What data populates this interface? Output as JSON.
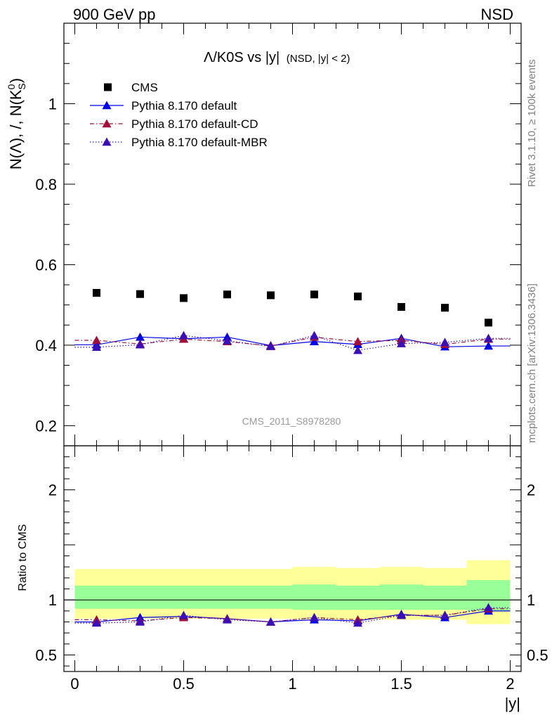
{
  "header": {
    "left_label": "900 GeV pp",
    "right_label": "NSD",
    "title_main": "Λ/K0S vs |y|",
    "title_sub": "(NSD, |y| < 2)"
  },
  "side_labels": {
    "rivet": "Rivet 3.1.10, ≥ 100k events",
    "mcplots": "mcplots.cern.ch [arXiv:1306.3436]"
  },
  "watermark": "CMS_2011_S8978280",
  "chart_data": [
    {
      "type": "scatter",
      "panel": "main",
      "ylabel": "N(Λ), /, N(K0S)",
      "ylabel_parts": {
        "a": "N(Λ), /, N(K",
        "sup": "0",
        "sub": "S",
        "b": ")"
      },
      "xlabel": "|y|",
      "xlim": [
        -0.05,
        2.05
      ],
      "ylim": [
        0.15,
        1.2
      ],
      "yticks": [
        0.2,
        0.4,
        0.6,
        0.8,
        1.0
      ],
      "ytick_labels": [
        "0.2",
        "0.4",
        "0.6",
        "0.8",
        "1"
      ],
      "x": [
        0.1,
        0.3,
        0.5,
        0.7,
        0.9,
        1.1,
        1.3,
        1.5,
        1.7,
        1.9
      ],
      "series": [
        {
          "name": "CMS",
          "style": "data",
          "color": "#000000",
          "values": [
            0.53,
            0.527,
            0.517,
            0.526,
            0.524,
            0.526,
            0.521,
            0.495,
            0.493,
            0.456
          ]
        },
        {
          "name": "Pythia 8.170 default",
          "style": "solid",
          "color": "#0000e6",
          "values": [
            0.401,
            0.42,
            0.416,
            0.42,
            0.399,
            0.409,
            0.402,
            0.417,
            0.396,
            0.398
          ],
          "errors": [
            0.006,
            0.007,
            0.007,
            0.007,
            0.006,
            0.007,
            0.007,
            0.007,
            0.007,
            0.007
          ]
        },
        {
          "name": "Pythia 8.170 default-CD",
          "style": "dashdot",
          "color": "#a0103a",
          "values": [
            0.412,
            0.403,
            0.415,
            0.409,
            0.398,
            0.42,
            0.409,
            0.412,
            0.402,
            0.415
          ],
          "errors": [
            0.006,
            0.007,
            0.007,
            0.007,
            0.006,
            0.007,
            0.007,
            0.007,
            0.007,
            0.007
          ]
        },
        {
          "name": "Pythia 8.170 default-MBR",
          "style": "dotted",
          "color": "#3b0fb5",
          "values": [
            0.395,
            0.401,
            0.424,
            0.411,
            0.397,
            0.424,
            0.387,
            0.404,
            0.407,
            0.417
          ],
          "errors": [
            0.006,
            0.007,
            0.007,
            0.007,
            0.006,
            0.007,
            0.007,
            0.007,
            0.007,
            0.007
          ]
        }
      ]
    },
    {
      "type": "scatter",
      "panel": "ratio",
      "ylabel": "Ratio to CMS",
      "xlabel": "|y|",
      "xlim": [
        -0.05,
        2.05
      ],
      "ylim": [
        0.35,
        2.4
      ],
      "yticks": [
        0.5,
        1,
        2
      ],
      "ytick_labels": [
        "0.5",
        "1",
        "2"
      ],
      "xticks": [
        0,
        0.5,
        1,
        1.5,
        2
      ],
      "xtick_labels": [
        "0",
        "0.5",
        "1",
        "1.5",
        "2"
      ],
      "x": [
        0.1,
        0.3,
        0.5,
        0.7,
        0.9,
        1.1,
        1.3,
        1.5,
        1.7,
        1.9
      ],
      "bands": {
        "x_edges": [
          0.0,
          0.2,
          0.4,
          0.6,
          0.8,
          1.0,
          1.2,
          1.4,
          1.6,
          1.8,
          2.0
        ],
        "stat_sys_yellow": [
          [
            0.83,
            1.28
          ],
          [
            0.83,
            1.28
          ],
          [
            0.83,
            1.28
          ],
          [
            0.83,
            1.28
          ],
          [
            0.83,
            1.28
          ],
          [
            0.82,
            1.3
          ],
          [
            0.82,
            1.29
          ],
          [
            0.82,
            1.3
          ],
          [
            0.82,
            1.29
          ],
          [
            0.78,
            1.36
          ]
        ],
        "stat_green": [
          [
            0.92,
            1.13
          ],
          [
            0.92,
            1.13
          ],
          [
            0.92,
            1.13
          ],
          [
            0.92,
            1.13
          ],
          [
            0.92,
            1.13
          ],
          [
            0.91,
            1.14
          ],
          [
            0.91,
            1.13
          ],
          [
            0.91,
            1.14
          ],
          [
            0.91,
            1.13
          ],
          [
            0.9,
            1.18
          ]
        ],
        "yellow_color": "#ffff99",
        "green_color": "#99ff99"
      },
      "series": [
        {
          "name": "Pythia 8.170 default",
          "style": "solid",
          "color": "#0000e6",
          "values": [
            0.8,
            0.84,
            0.85,
            0.83,
            0.8,
            0.82,
            0.81,
            0.87,
            0.84,
            0.9
          ]
        },
        {
          "name": "Pythia 8.170 default-CD",
          "style": "dashdot",
          "color": "#a0103a",
          "values": [
            0.82,
            0.81,
            0.84,
            0.83,
            0.8,
            0.84,
            0.82,
            0.86,
            0.86,
            0.92
          ]
        },
        {
          "name": "Pythia 8.170 default-MBR",
          "style": "dotted",
          "color": "#3b0fb5",
          "values": [
            0.79,
            0.8,
            0.86,
            0.82,
            0.8,
            0.84,
            0.79,
            0.86,
            0.86,
            0.93
          ]
        }
      ]
    }
  ]
}
